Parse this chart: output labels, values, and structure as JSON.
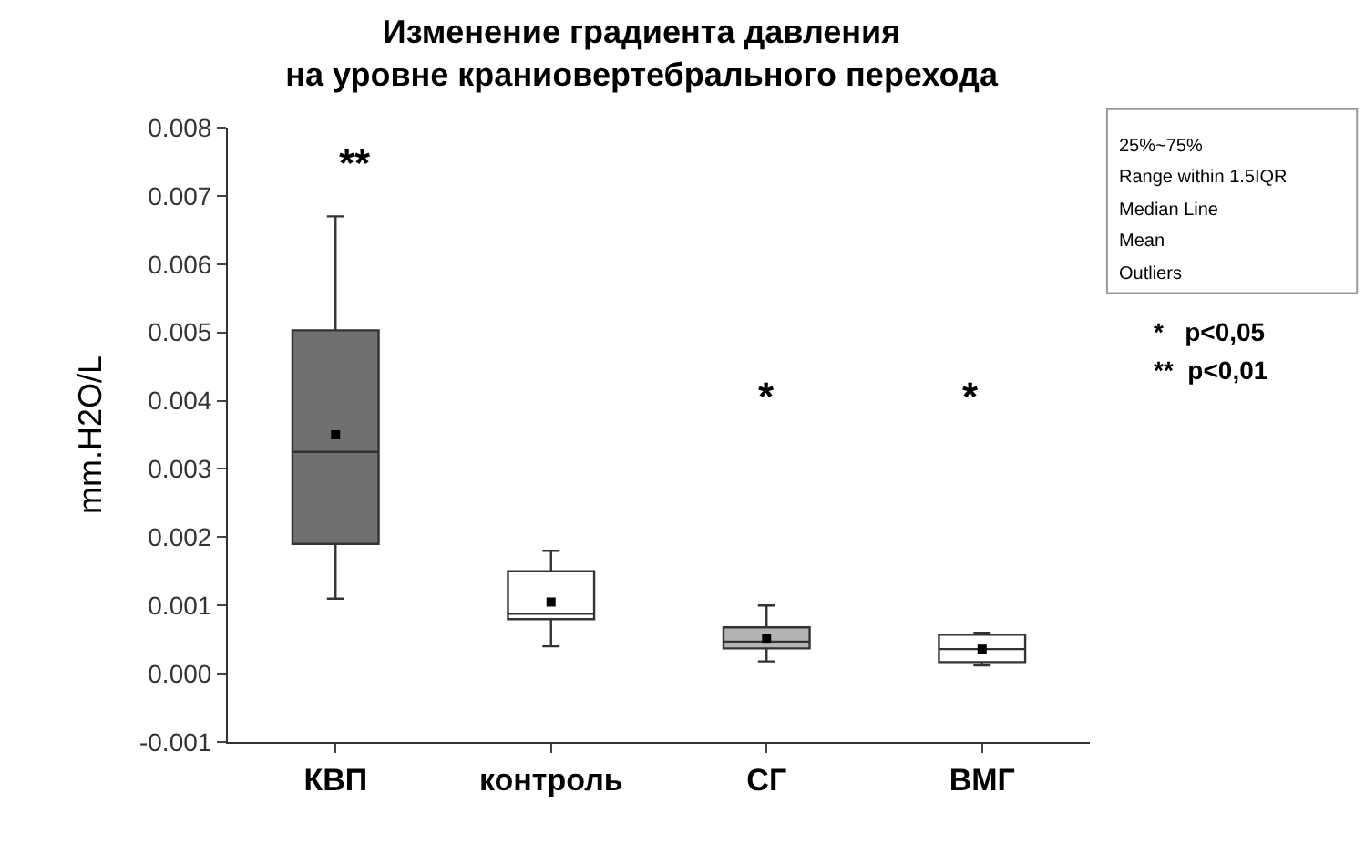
{
  "chart_data": {
    "type": "box",
    "title": "Изменение градиента давления\nна уровне краниовертебрального перехода",
    "ylabel": "mm.H2O/L",
    "categories": [
      "КВП",
      "контроль",
      "СГ",
      "ВМГ"
    ],
    "colors": [
      "#707070",
      "#ffffff",
      "#b4b4b4",
      "#ffffff"
    ],
    "boxes": [
      {
        "low": 0.0011,
        "q1": 0.0019,
        "median": 0.00325,
        "q3": 0.00503,
        "high": 0.0067,
        "mean": 0.0035
      },
      {
        "low": 0.0004,
        "q1": 0.0008,
        "median": 0.00088,
        "q3": 0.0015,
        "high": 0.0018,
        "mean": 0.00105
      },
      {
        "low": 0.00018,
        "q1": 0.00037,
        "median": 0.00047,
        "q3": 0.00068,
        "high": 0.001,
        "mean": 0.00052
      },
      {
        "low": 0.00012,
        "q1": 0.00017,
        "median": 0.00036,
        "q3": 0.00057,
        "high": 0.0006,
        "mean": 0.00036
      }
    ],
    "ylim": [
      -0.001,
      0.008
    ],
    "yticks": [
      -0.001,
      {
        "value": 0,
        "label": "0.000"
      },
      0.001,
      0.002,
      0.003,
      0.004,
      0.005,
      0.006,
      0.007,
      0.008
    ],
    "annotations": [
      "**",
      "*",
      "*",
      "25%~75%",
      "Range within 1.5IQR",
      "Median Line",
      "Mean",
      "Outliers",
      "*   p<0,05",
      "**  p<0,01"
    ]
  }
}
